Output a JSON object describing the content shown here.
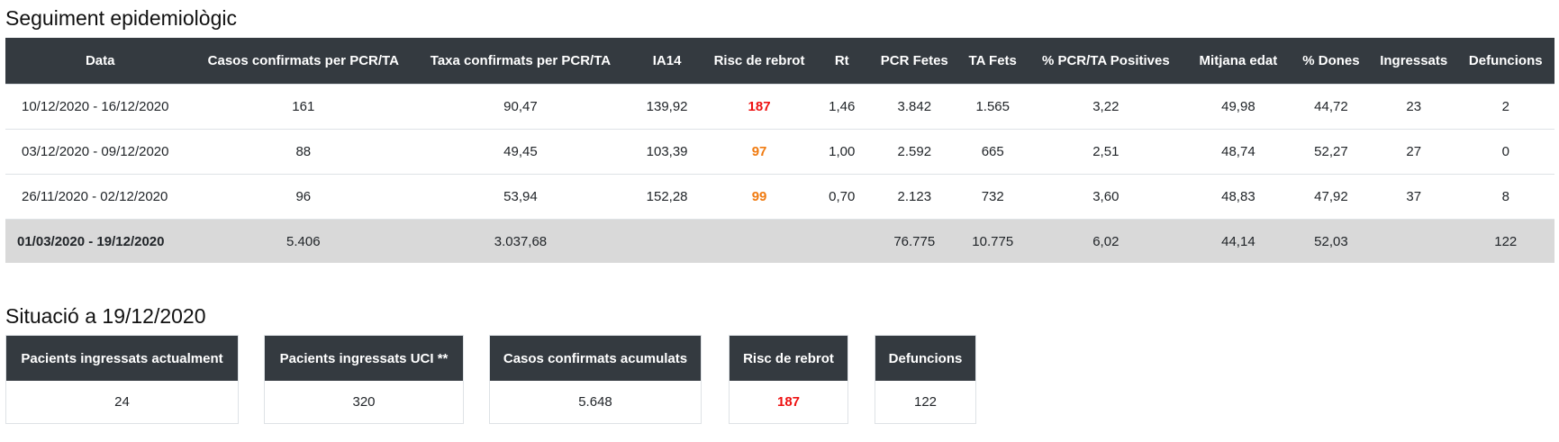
{
  "section1": {
    "title": "Seguiment epidemiològic"
  },
  "table": {
    "headers": [
      "Data",
      "Casos confirmats per PCR/TA",
      "Taxa confirmats per PCR/TA",
      "IA14",
      "Risc de rebrot",
      "Rt",
      "PCR Fetes",
      "TA Fets",
      "% PCR/TA Positives",
      "Mitjana edat",
      "% Dones",
      "Ingressats",
      "Defuncions"
    ],
    "rows": [
      [
        "10/12/2020 - 16/12/2020",
        "161",
        "90,47",
        "139,92",
        "187",
        "1,46",
        "3.842",
        "1.565",
        "3,22",
        "49,98",
        "44,72",
        "23",
        "2"
      ],
      [
        "03/12/2020 - 09/12/2020",
        "88",
        "49,45",
        "103,39",
        "97",
        "1,00",
        "2.592",
        "665",
        "2,51",
        "48,74",
        "52,27",
        "27",
        "0"
      ],
      [
        "26/11/2020 - 02/12/2020",
        "96",
        "53,94",
        "152,28",
        "99",
        "0,70",
        "2.123",
        "732",
        "3,60",
        "48,83",
        "47,92",
        "37",
        "8"
      ]
    ],
    "total": [
      "01/03/2020 - 19/12/2020",
      "5.406",
      "3.037,68",
      "",
      "",
      "",
      "76.775",
      "10.775",
      "6,02",
      "44,14",
      "52,03",
      "",
      "122"
    ],
    "risk_colors": [
      "#ee1111",
      "#f07b11",
      "#f07b11"
    ]
  },
  "section2": {
    "title": "Situació a 19/12/2020",
    "cards": [
      {
        "label": "Pacients ingressats actualment",
        "value": "24"
      },
      {
        "label": "Pacients ingressats UCI **",
        "value": "320"
      },
      {
        "label": "Casos confirmats acumulats",
        "value": "5.648"
      },
      {
        "label": "Risc de rebrot",
        "value": "187"
      },
      {
        "label": "Defuncions",
        "value": "122"
      }
    ]
  },
  "colors": {
    "header_bg": "#343a40",
    "total_row_bg": "#d9d9d9",
    "risk_high": "#ee1111",
    "risk_medium": "#f07b11"
  }
}
